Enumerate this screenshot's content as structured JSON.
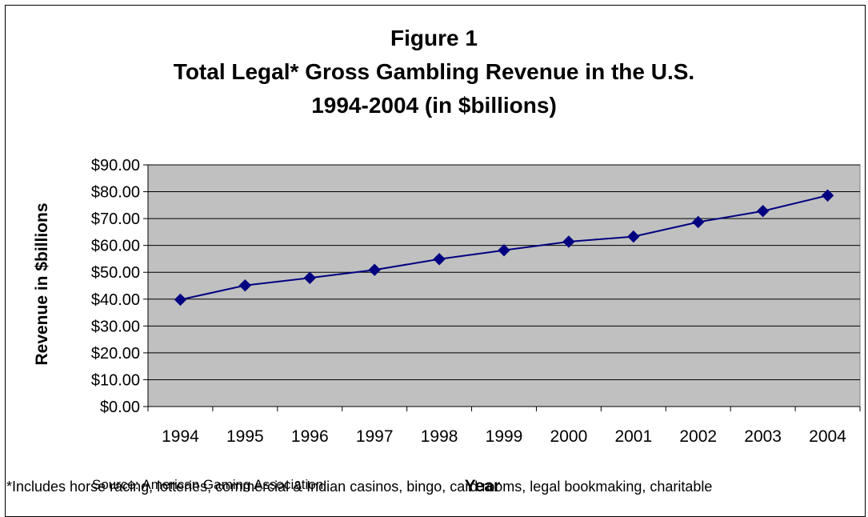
{
  "chart_data": {
    "type": "line",
    "title": [
      "Figure 1",
      "Total Legal* Gross Gambling Revenue in the U.S.",
      "1994-2004 (in $billions)"
    ],
    "xlabel": "Year",
    "ylabel": "Revenue in $billions",
    "categories": [
      "1994",
      "1995",
      "1996",
      "1997",
      "1998",
      "1999",
      "2000",
      "2001",
      "2002",
      "2003",
      "2004"
    ],
    "series": [
      {
        "values": [
          39.8,
          45.1,
          47.9,
          50.9,
          54.9,
          58.2,
          61.4,
          63.3,
          68.7,
          72.8,
          78.6
        ]
      }
    ],
    "yticks": [
      "$0.00",
      "$10.00",
      "$20.00",
      "$30.00",
      "$40.00",
      "$50.00",
      "$60.00",
      "$70.00",
      "$80.00",
      "$90.00"
    ],
    "ylim": [
      0,
      90
    ],
    "grid": true,
    "legend": "none",
    "colors": {
      "line": "#000080",
      "plot_bg": "#c0c0c0",
      "grid": "#000000"
    }
  },
  "source": "Source: American Gaming Association",
  "footnote": "*Includes horse racing, lotteries, commercial & Indian casinos, bingo, card rooms, legal bookmaking, charitable"
}
